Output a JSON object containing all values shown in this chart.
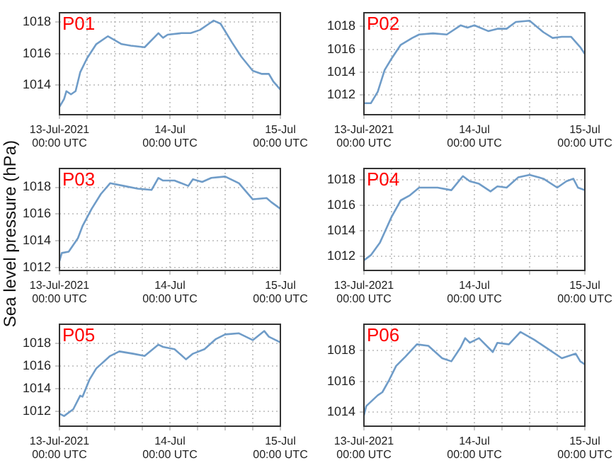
{
  "chart_data": [
    {
      "type": "line",
      "title": "P01",
      "color": "#6f9cc8",
      "marker": "none",
      "grid": true,
      "xlim": [
        "2021-07-13T00:00",
        "2021-07-15T00:00"
      ],
      "ylim": [
        1012.1,
        1018.6
      ],
      "yticks": [
        1014,
        1016,
        1018
      ],
      "xticks": [
        {
          "value": "2021-07-13T00:00",
          "label": "13-Jul-2021\n00:00 UTC"
        },
        {
          "value": "2021-07-13T06:00",
          "label": null
        },
        {
          "value": "2021-07-13T12:00",
          "label": null
        },
        {
          "value": "2021-07-13T18:00",
          "label": null
        },
        {
          "value": "2021-07-14T00:00",
          "label": "14-Jul\n00:00 UTC"
        },
        {
          "value": "2021-07-14T06:00",
          "label": null
        },
        {
          "value": "2021-07-14T12:00",
          "label": null
        },
        {
          "value": "2021-07-14T18:00",
          "label": null
        },
        {
          "value": "2021-07-15T00:00",
          "label": "15-Jul\n00:00 UTC"
        }
      ],
      "x": [
        "2021-07-13T00:00",
        "2021-07-13T01:00",
        "2021-07-13T01:30",
        "2021-07-13T02:30",
        "2021-07-13T03:30",
        "2021-07-13T04:30",
        "2021-07-13T06:00",
        "2021-07-13T08:00",
        "2021-07-13T10:30",
        "2021-07-13T13:30",
        "2021-07-13T15:30",
        "2021-07-13T18:30",
        "2021-07-13T21:30",
        "2021-07-13T22:30",
        "2021-07-13T23:30",
        "2021-07-14T02:30",
        "2021-07-14T04:30",
        "2021-07-14T06:30",
        "2021-07-14T08:30",
        "2021-07-14T09:30",
        "2021-07-14T11:00",
        "2021-07-14T13:30",
        "2021-07-14T15:30",
        "2021-07-14T18:00",
        "2021-07-14T20:00",
        "2021-07-14T21:30",
        "2021-07-14T22:30",
        "2021-07-15T00:00"
      ],
      "values": [
        1012.6,
        1013.1,
        1013.6,
        1013.4,
        1013.6,
        1014.8,
        1015.7,
        1016.6,
        1017.1,
        1016.6,
        1016.5,
        1016.4,
        1017.3,
        1017.0,
        1017.2,
        1017.3,
        1017.3,
        1017.5,
        1017.9,
        1018.1,
        1017.9,
        1016.7,
        1015.8,
        1014.9,
        1014.7,
        1014.7,
        1014.2,
        1013.7
      ]
    },
    {
      "type": "line",
      "title": "P02",
      "color": "#6f9cc8",
      "marker": "none",
      "grid": true,
      "xlim": [
        "2021-07-13T00:00",
        "2021-07-15T00:00"
      ],
      "ylim": [
        1010.3,
        1019.2
      ],
      "yticks": [
        1012,
        1014,
        1016,
        1018
      ],
      "xticks": [
        {
          "value": "2021-07-13T00:00",
          "label": "13-Jul-2021\n00:00 UTC"
        },
        {
          "value": "2021-07-13T06:00",
          "label": null
        },
        {
          "value": "2021-07-13T12:00",
          "label": null
        },
        {
          "value": "2021-07-13T18:00",
          "label": null
        },
        {
          "value": "2021-07-14T00:00",
          "label": "14-Jul\n00:00 UTC"
        },
        {
          "value": "2021-07-14T06:00",
          "label": null
        },
        {
          "value": "2021-07-14T12:00",
          "label": null
        },
        {
          "value": "2021-07-14T18:00",
          "label": null
        },
        {
          "value": "2021-07-15T00:00",
          "label": "15-Jul\n00:00 UTC"
        }
      ],
      "x": [
        "2021-07-13T00:00",
        "2021-07-13T01:30",
        "2021-07-13T03:00",
        "2021-07-13T04:30",
        "2021-07-13T06:00",
        "2021-07-13T08:00",
        "2021-07-13T10:30",
        "2021-07-13T12:00",
        "2021-07-13T15:00",
        "2021-07-13T18:00",
        "2021-07-13T21:00",
        "2021-07-13T22:30",
        "2021-07-14T00:00",
        "2021-07-14T03:00",
        "2021-07-14T05:00",
        "2021-07-14T07:00",
        "2021-07-14T09:00",
        "2021-07-14T12:00",
        "2021-07-14T15:00",
        "2021-07-14T17:00",
        "2021-07-14T19:00",
        "2021-07-14T21:00",
        "2021-07-14T23:00",
        "2021-07-15T00:00"
      ],
      "values": [
        1011.3,
        1011.3,
        1012.3,
        1014.2,
        1015.2,
        1016.4,
        1017.0,
        1017.3,
        1017.4,
        1017.3,
        1018.1,
        1017.9,
        1018.1,
        1017.6,
        1017.8,
        1017.8,
        1018.4,
        1018.5,
        1017.5,
        1017.0,
        1017.1,
        1017.1,
        1016.2,
        1015.6
      ]
    },
    {
      "type": "line",
      "title": "P03",
      "ylabel": "Sea level pressure (hPa)",
      "color": "#6f9cc8",
      "marker": "none",
      "grid": true,
      "xlim": [
        "2021-07-13T00:00",
        "2021-07-15T00:00"
      ],
      "ylim": [
        1011.8,
        1019.4
      ],
      "yticks": [
        1012,
        1014,
        1016,
        1018
      ],
      "xticks": [
        {
          "value": "2021-07-13T00:00",
          "label": "13-Jul-2021\n00:00 UTC"
        },
        {
          "value": "2021-07-13T06:00",
          "label": null
        },
        {
          "value": "2021-07-13T12:00",
          "label": null
        },
        {
          "value": "2021-07-13T18:00",
          "label": null
        },
        {
          "value": "2021-07-14T00:00",
          "label": "14-Jul\n00:00 UTC"
        },
        {
          "value": "2021-07-14T06:00",
          "label": null
        },
        {
          "value": "2021-07-14T12:00",
          "label": null
        },
        {
          "value": "2021-07-14T18:00",
          "label": null
        },
        {
          "value": "2021-07-15T00:00",
          "label": "15-Jul\n00:00 UTC"
        }
      ],
      "x": [
        "2021-07-13T00:00",
        "2021-07-13T00:30",
        "2021-07-13T02:00",
        "2021-07-13T03:00",
        "2021-07-13T04:00",
        "2021-07-13T05:00",
        "2021-07-13T07:00",
        "2021-07-13T09:00",
        "2021-07-13T11:00",
        "2021-07-13T14:00",
        "2021-07-13T17:00",
        "2021-07-13T20:00",
        "2021-07-13T21:30",
        "2021-07-13T22:30",
        "2021-07-14T01:00",
        "2021-07-14T04:00",
        "2021-07-14T05:00",
        "2021-07-14T07:00",
        "2021-07-14T09:00",
        "2021-07-14T12:00",
        "2021-07-14T15:00",
        "2021-07-14T18:00",
        "2021-07-14T21:00",
        "2021-07-14T22:00",
        "2021-07-15T00:00"
      ],
      "values": [
        1012.5,
        1013.1,
        1013.2,
        1013.7,
        1014.2,
        1015.1,
        1016.4,
        1017.5,
        1018.3,
        1018.1,
        1017.9,
        1017.8,
        1018.7,
        1018.5,
        1018.5,
        1018.1,
        1018.6,
        1018.4,
        1018.7,
        1018.8,
        1018.3,
        1017.1,
        1017.2,
        1016.9,
        1016.4
      ]
    },
    {
      "type": "line",
      "title": "P04",
      "color": "#6f9cc8",
      "marker": "none",
      "grid": true,
      "xlim": [
        "2021-07-13T00:00",
        "2021-07-15T00:00"
      ],
      "ylim": [
        1010.9,
        1018.9
      ],
      "yticks": [
        1012,
        1014,
        1016,
        1018
      ],
      "xticks": [
        {
          "value": "2021-07-13T00:00",
          "label": "13-Jul-2021\n00:00 UTC"
        },
        {
          "value": "2021-07-13T06:00",
          "label": null
        },
        {
          "value": "2021-07-13T12:00",
          "label": null
        },
        {
          "value": "2021-07-13T18:00",
          "label": null
        },
        {
          "value": "2021-07-14T00:00",
          "label": "14-Jul\n00:00 UTC"
        },
        {
          "value": "2021-07-14T06:00",
          "label": null
        },
        {
          "value": "2021-07-14T12:00",
          "label": null
        },
        {
          "value": "2021-07-14T18:00",
          "label": null
        },
        {
          "value": "2021-07-15T00:00",
          "label": "15-Jul\n00:00 UTC"
        }
      ],
      "x": [
        "2021-07-13T00:00",
        "2021-07-13T01:30",
        "2021-07-13T03:30",
        "2021-07-13T04:30",
        "2021-07-13T06:00",
        "2021-07-13T08:00",
        "2021-07-13T10:00",
        "2021-07-13T12:00",
        "2021-07-13T16:00",
        "2021-07-13T19:00",
        "2021-07-13T21:30",
        "2021-07-13T23:00",
        "2021-07-14T01:00",
        "2021-07-14T03:30",
        "2021-07-14T05:00",
        "2021-07-14T07:00",
        "2021-07-14T09:30",
        "2021-07-14T12:00",
        "2021-07-14T15:00",
        "2021-07-14T18:00",
        "2021-07-14T20:00",
        "2021-07-14T21:30",
        "2021-07-14T22:30",
        "2021-07-15T00:00"
      ],
      "values": [
        1011.7,
        1012.1,
        1013.1,
        1013.9,
        1015.1,
        1016.4,
        1016.8,
        1017.4,
        1017.4,
        1017.2,
        1018.3,
        1017.9,
        1017.7,
        1017.1,
        1017.5,
        1017.4,
        1018.2,
        1018.4,
        1018.1,
        1017.4,
        1017.9,
        1018.1,
        1017.4,
        1017.2
      ]
    },
    {
      "type": "line",
      "title": "P05",
      "color": "#6f9cc8",
      "marker": "none",
      "grid": true,
      "xlim": [
        "2021-07-13T00:00",
        "2021-07-15T00:00"
      ],
      "ylim": [
        1010.7,
        1019.7
      ],
      "yticks": [
        1012,
        1014,
        1016,
        1018
      ],
      "xticks": [
        {
          "value": "2021-07-13T00:00",
          "label": "13-Jul-2021\n00:00 UTC"
        },
        {
          "value": "2021-07-13T06:00",
          "label": null
        },
        {
          "value": "2021-07-13T12:00",
          "label": null
        },
        {
          "value": "2021-07-13T18:00",
          "label": null
        },
        {
          "value": "2021-07-14T00:00",
          "label": "14-Jul\n00:00 UTC"
        },
        {
          "value": "2021-07-14T06:00",
          "label": null
        },
        {
          "value": "2021-07-14T12:00",
          "label": null
        },
        {
          "value": "2021-07-14T18:00",
          "label": null
        },
        {
          "value": "2021-07-15T00:00",
          "label": "15-Jul\n00:00 UTC"
        }
      ],
      "x": [
        "2021-07-13T00:00",
        "2021-07-13T01:00",
        "2021-07-13T03:00",
        "2021-07-13T04:30",
        "2021-07-13T05:00",
        "2021-07-13T06:30",
        "2021-07-13T08:00",
        "2021-07-13T11:00",
        "2021-07-13T13:00",
        "2021-07-13T16:00",
        "2021-07-13T18:30",
        "2021-07-13T21:30",
        "2021-07-13T22:30",
        "2021-07-14T01:00",
        "2021-07-14T03:30",
        "2021-07-14T05:00",
        "2021-07-14T07:30",
        "2021-07-14T10:00",
        "2021-07-14T12:00",
        "2021-07-14T15:00",
        "2021-07-14T18:00",
        "2021-07-14T20:30",
        "2021-07-14T21:30",
        "2021-07-15T00:00"
      ],
      "values": [
        1011.8,
        1011.6,
        1012.2,
        1013.4,
        1013.3,
        1014.8,
        1015.8,
        1016.9,
        1017.3,
        1017.1,
        1016.9,
        1017.9,
        1017.7,
        1017.5,
        1016.6,
        1017.1,
        1017.5,
        1018.4,
        1018.8,
        1018.9,
        1018.3,
        1019.1,
        1018.6,
        1018.1
      ]
    },
    {
      "type": "line",
      "title": "P06",
      "color": "#6f9cc8",
      "marker": "none",
      "grid": true,
      "xlim": [
        "2021-07-13T00:00",
        "2021-07-15T00:00"
      ],
      "ylim": [
        1013.1,
        1019.7
      ],
      "yticks": [
        1014,
        1016,
        1018
      ],
      "xticks": [
        {
          "value": "2021-07-13T00:00",
          "label": "13-Jul-2021\n00:00 UTC"
        },
        {
          "value": "2021-07-13T06:00",
          "label": null
        },
        {
          "value": "2021-07-13T12:00",
          "label": null
        },
        {
          "value": "2021-07-13T18:00",
          "label": null
        },
        {
          "value": "2021-07-14T00:00",
          "label": "14-Jul\n00:00 UTC"
        },
        {
          "value": "2021-07-14T06:00",
          "label": null
        },
        {
          "value": "2021-07-14T12:00",
          "label": null
        },
        {
          "value": "2021-07-14T18:00",
          "label": null
        },
        {
          "value": "2021-07-15T00:00",
          "label": "15-Jul\n00:00 UTC"
        }
      ],
      "x": [
        "2021-07-13T00:00",
        "2021-07-13T00:30",
        "2021-07-13T03:00",
        "2021-07-13T04:00",
        "2021-07-13T05:30",
        "2021-07-13T07:00",
        "2021-07-13T09:00",
        "2021-07-13T11:30",
        "2021-07-13T14:00",
        "2021-07-13T17:00",
        "2021-07-13T19:00",
        "2021-07-13T21:00",
        "2021-07-13T22:00",
        "2021-07-13T23:00",
        "2021-07-14T01:00",
        "2021-07-14T04:00",
        "2021-07-14T05:00",
        "2021-07-14T07:30",
        "2021-07-14T10:00",
        "2021-07-14T13:00",
        "2021-07-14T16:00",
        "2021-07-14T19:00",
        "2021-07-14T22:00",
        "2021-07-14T23:00",
        "2021-07-15T00:00"
      ],
      "values": [
        1013.8,
        1014.4,
        1015.1,
        1015.3,
        1016.1,
        1017.0,
        1017.6,
        1018.4,
        1018.3,
        1017.5,
        1017.3,
        1018.2,
        1018.8,
        1018.5,
        1018.8,
        1017.9,
        1018.5,
        1018.4,
        1019.2,
        1018.7,
        1018.1,
        1017.5,
        1017.8,
        1017.3,
        1017.1
      ]
    }
  ]
}
